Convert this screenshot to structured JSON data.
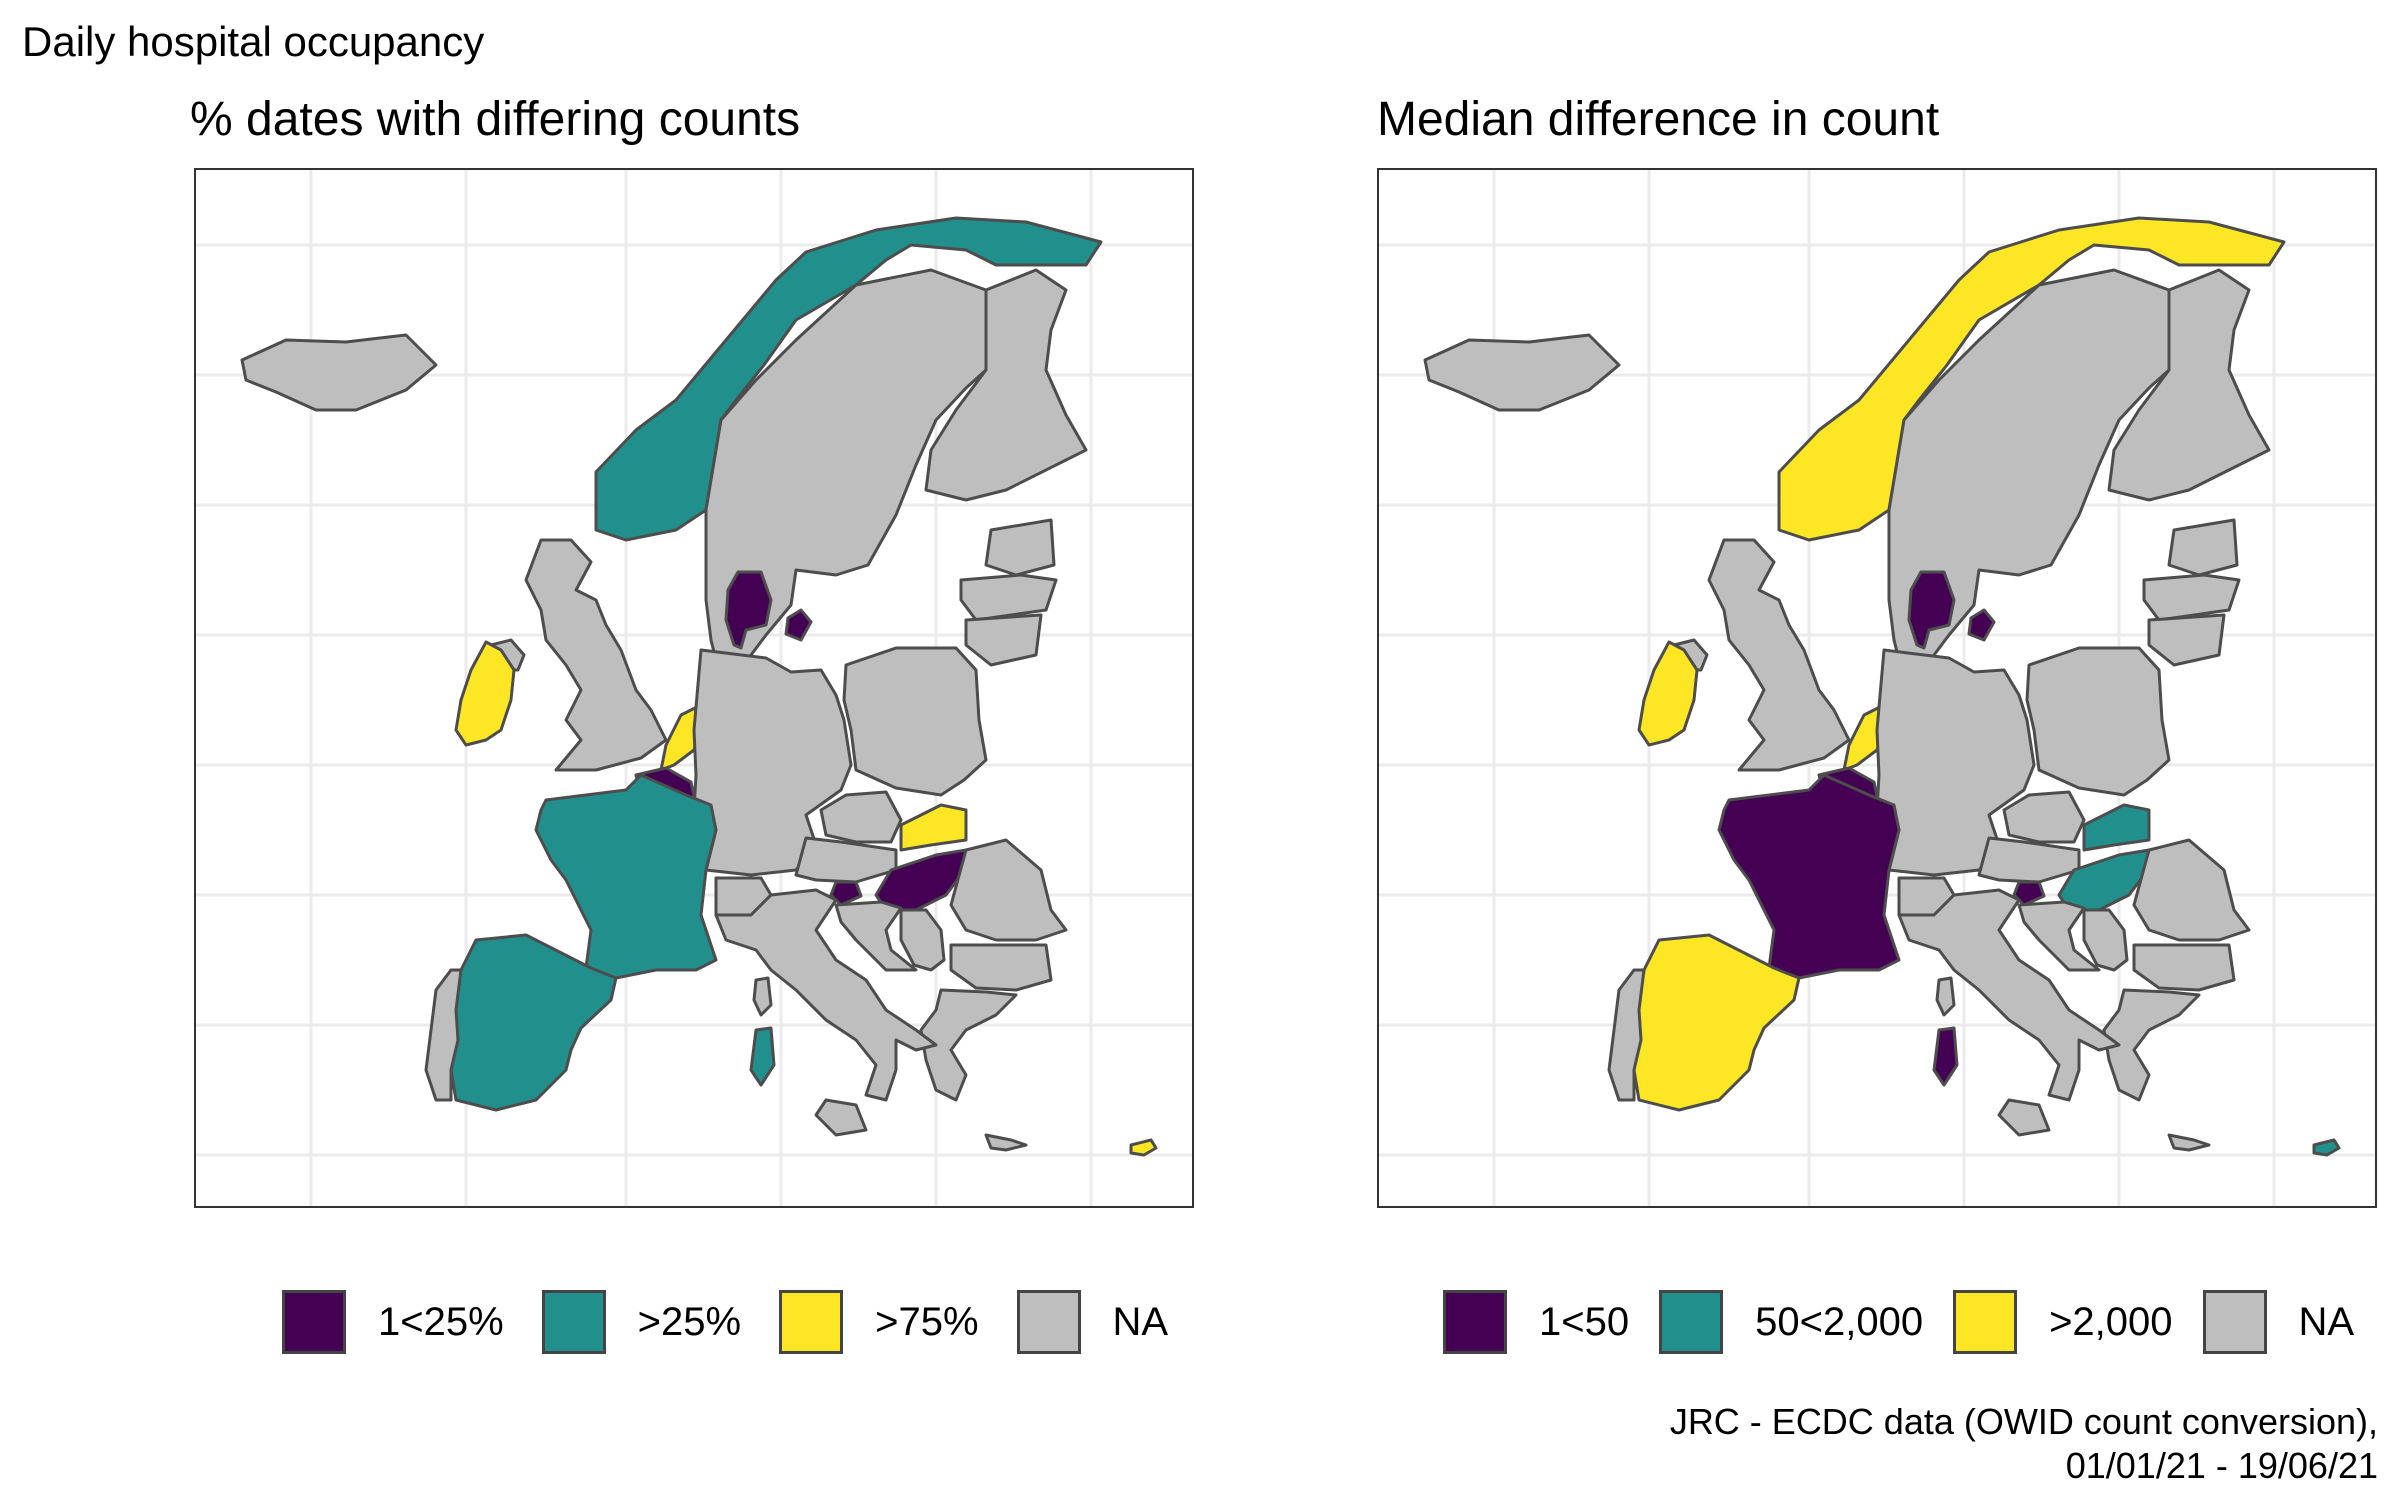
{
  "figure": {
    "title": "Daily hospital occupancy",
    "caption_line1": "JRC - ECDC data (OWID count conversion),",
    "caption_line2": "01/01/21 - 19/06/21"
  },
  "colors": {
    "purple": "#440154",
    "teal": "#21908C",
    "yellow": "#FDE725",
    "grey": "#BEBEBE",
    "border": "#4d4d4d",
    "grid": "#EBEBEB"
  },
  "panels": [
    {
      "title": "% dates with differing counts",
      "legend": [
        {
          "label": "1<25%",
          "color": "#440154"
        },
        {
          "label": ">25%",
          "color": "#21908C"
        },
        {
          "label": ">75%",
          "color": "#FDE725"
        },
        {
          "label": "NA",
          "color": "#BEBEBE"
        }
      ],
      "country_fill": {
        "iceland": "NA",
        "norway": ">25%",
        "sweden": "NA",
        "finland": "NA",
        "denmark": "1<25%",
        "denmark-islands": "1<25%",
        "ireland": ">75%",
        "northern-ireland": "NA",
        "great-britain": "NA",
        "netherlands": ">75%",
        "belgium": "1<25%",
        "france": ">25%",
        "spain": ">25%",
        "portugal": "NA",
        "germany": "NA",
        "poland": "NA",
        "czechia": "NA",
        "slovakia": ">75%",
        "austria": "NA",
        "switzerland": "NA",
        "hungary": "1<25%",
        "slovenia": "1<25%",
        "croatia": "NA",
        "italy": "NA",
        "sardinia": ">25%",
        "corsica": "NA",
        "sicily": "NA",
        "romania": "NA",
        "bulgaria": "NA",
        "greece": "NA",
        "serbia": "NA",
        "estonia": "NA",
        "latvia": "NA",
        "lithuania": "NA",
        "crete": "NA",
        "cyprus": ">75%"
      }
    },
    {
      "title": "Median difference in count",
      "legend": [
        {
          "label": "1<50",
          "color": "#440154"
        },
        {
          "label": "50<2,000",
          "color": "#21908C"
        },
        {
          "label": ">2,000",
          "color": "#FDE725"
        },
        {
          "label": "NA",
          "color": "#BEBEBE"
        }
      ],
      "country_fill": {
        "iceland": "NA",
        "norway": ">2,000",
        "sweden": "NA",
        "finland": "NA",
        "denmark": "1<50",
        "denmark-islands": "1<50",
        "ireland": ">2,000",
        "northern-ireland": "NA",
        "great-britain": "NA",
        "netherlands": ">2,000",
        "belgium": "1<50",
        "france": "1<50",
        "spain": ">2,000",
        "portugal": "NA",
        "germany": "NA",
        "poland": "NA",
        "czechia": "NA",
        "slovakia": "50<2,000",
        "austria": "NA",
        "switzerland": "NA",
        "hungary": "50<2,000",
        "slovenia": "1<50",
        "croatia": "NA",
        "italy": "NA",
        "sardinia": "1<50",
        "corsica": "NA",
        "sicily": "NA",
        "romania": "NA",
        "bulgaria": "NA",
        "greece": "NA",
        "serbia": "NA",
        "estonia": "NA",
        "latvia": "NA",
        "lithuania": "NA",
        "crete": "NA",
        "cyprus": "50<2,000"
      }
    }
  ]
}
